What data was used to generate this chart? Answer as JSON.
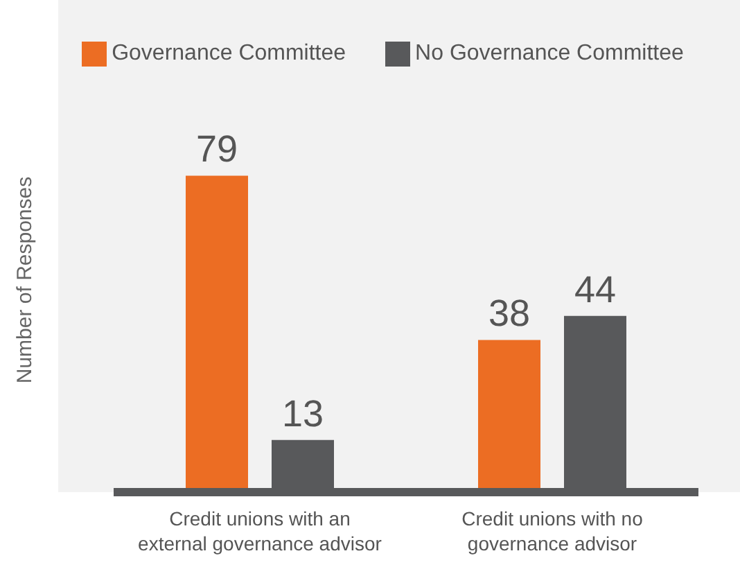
{
  "chart_data": {
    "type": "bar",
    "ylabel": "Number of Responses",
    "categories": [
      "Credit unions with an external governance advisor",
      "Credit unions with no governance advisor"
    ],
    "series": [
      {
        "name": "Governance Committee",
        "color": "#ec6d23",
        "values": [
          79,
          38
        ]
      },
      {
        "name": "No Governance Committee",
        "color": "#58595b",
        "values": [
          13,
          44
        ]
      }
    ],
    "data_labels": true,
    "legend": "top",
    "grid": false
  }
}
